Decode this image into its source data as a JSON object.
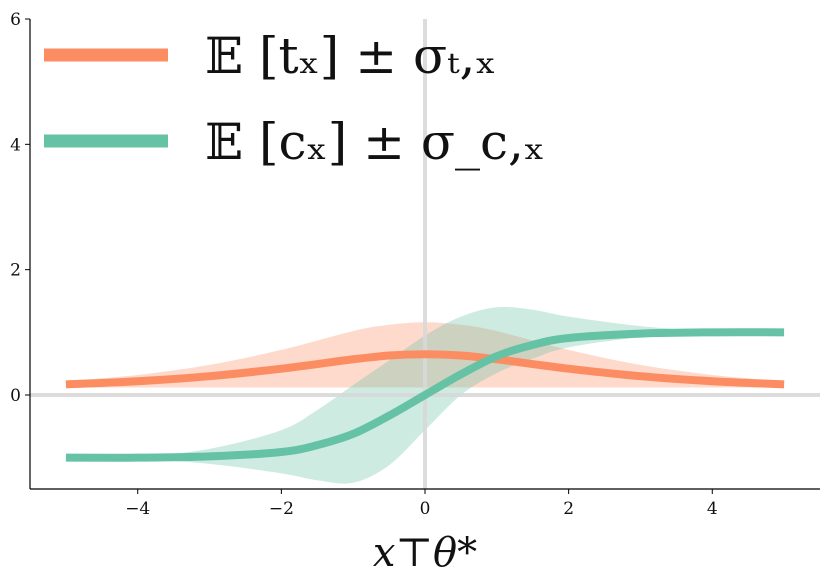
{
  "chart_data": {
    "type": "line",
    "title": "",
    "xlabel": "x⊤θ*",
    "ylabel": "",
    "xlim": [
      -5.5,
      5.5
    ],
    "ylim": [
      -1.5,
      6
    ],
    "x_ticks": [
      -4,
      -2,
      0,
      2,
      4
    ],
    "y_ticks": [
      0,
      2,
      4,
      6
    ],
    "x_tick_labels": [
      "−4",
      "−2",
      "0",
      "2",
      "4"
    ],
    "y_tick_labels": [
      "0",
      "2",
      "4",
      "6"
    ],
    "grid": false,
    "reference_lines": {
      "x": 0,
      "y": 0
    },
    "legend_position": "top-left",
    "series": [
      {
        "name": "𝔼 [tₓ] ± σₜ,ₓ",
        "color": "#fc8d62",
        "x": [
          -5,
          -4,
          -3,
          -2,
          -1,
          -0.5,
          0,
          0.5,
          1,
          2,
          3,
          4,
          5
        ],
        "y": [
          0.17,
          0.22,
          0.3,
          0.42,
          0.57,
          0.63,
          0.65,
          0.63,
          0.57,
          0.42,
          0.3,
          0.22,
          0.17
        ],
        "lower": [
          0.12,
          0.12,
          0.12,
          0.12,
          0.12,
          0.12,
          0.12,
          0.12,
          0.12,
          0.12,
          0.12,
          0.12,
          0.12
        ],
        "upper": [
          0.22,
          0.32,
          0.48,
          0.72,
          1.02,
          1.12,
          1.16,
          1.12,
          1.02,
          0.72,
          0.48,
          0.32,
          0.22
        ]
      },
      {
        "name": "𝔼 [cₓ] ± σ_c,ₓ",
        "color": "#66c2a5",
        "x": [
          -5,
          -4,
          -3,
          -2,
          -1.5,
          -1,
          -0.5,
          0,
          0.5,
          1,
          1.5,
          2,
          3,
          4,
          5
        ],
        "y": [
          -1.0,
          -1.0,
          -0.98,
          -0.91,
          -0.8,
          -0.62,
          -0.33,
          0.0,
          0.33,
          0.62,
          0.8,
          0.91,
          0.98,
          1.0,
          1.0
        ],
        "lower": [
          -1.0,
          -1.02,
          -1.1,
          -1.25,
          -1.36,
          -1.4,
          -1.12,
          -0.56,
          0.0,
          0.35,
          0.58,
          0.76,
          0.92,
          0.98,
          1.0
        ],
        "upper": [
          -1.0,
          -0.98,
          -0.86,
          -0.56,
          -0.24,
          0.16,
          0.55,
          0.95,
          1.25,
          1.4,
          1.36,
          1.25,
          1.1,
          1.02,
          1.0
        ]
      }
    ]
  }
}
